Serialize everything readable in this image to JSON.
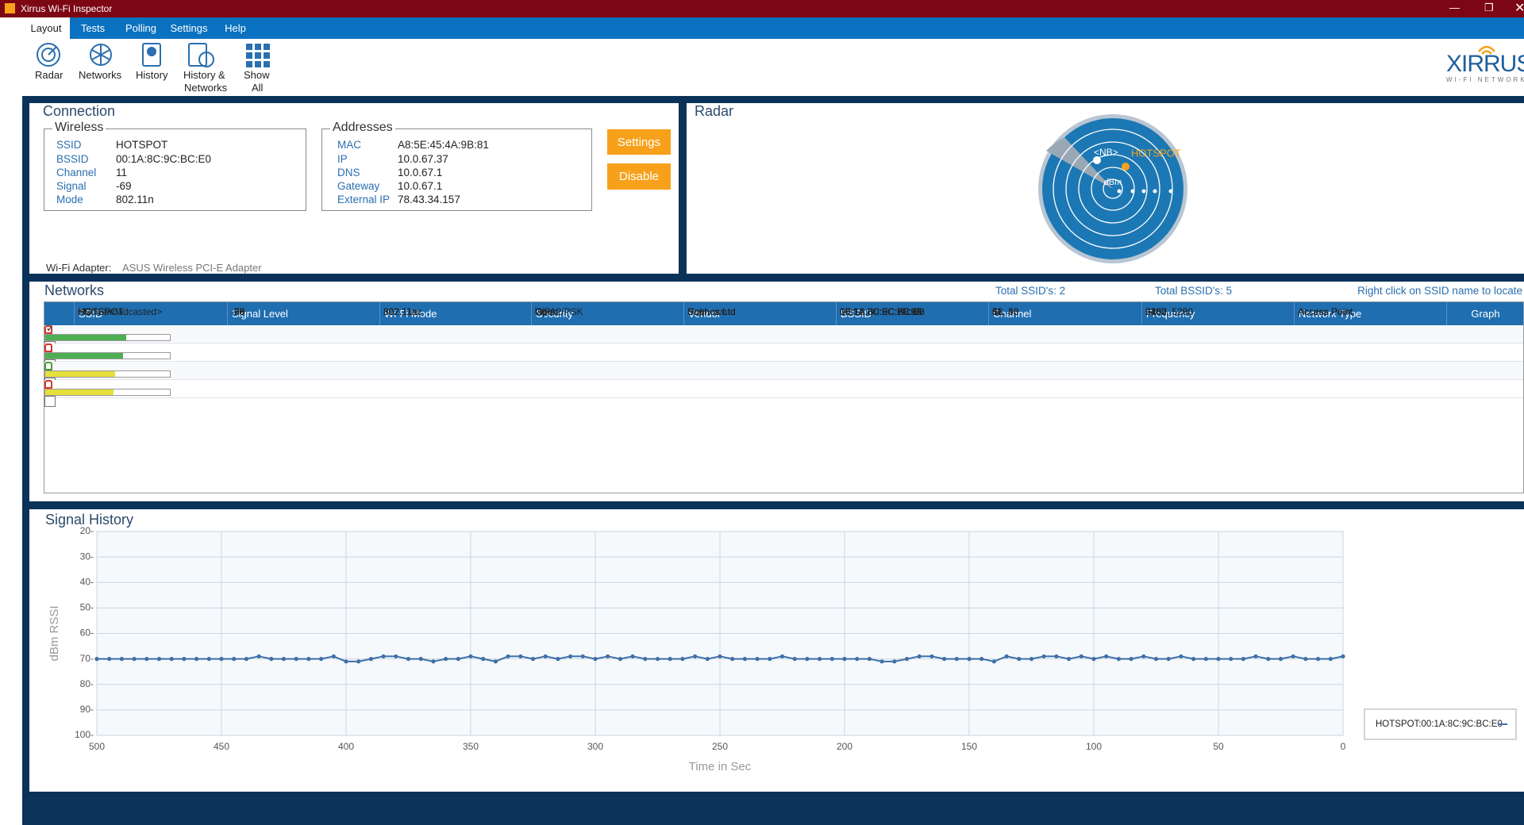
{
  "window_title": "Xirrus Wi-Fi Inspector",
  "menu": [
    "Layout",
    "Tests",
    "Polling",
    "Settings",
    "Help"
  ],
  "toolbar": [
    "Radar",
    "Networks",
    "History",
    "History &",
    "Networks",
    "Show",
    "All"
  ],
  "logo": "XIRRUS",
  "logo_sub": "WI-FI NETWORKS",
  "connection": {
    "title": "Connection",
    "wireless": {
      "title": "Wireless",
      "fields": [
        {
          "label": "SSID",
          "value": "HOTSPOT"
        },
        {
          "label": "BSSID",
          "value": "00:1A:8C:9C:BC:E0"
        },
        {
          "label": "Channel",
          "value": "11"
        },
        {
          "label": "Signal",
          "value": "-69"
        },
        {
          "label": "Mode",
          "value": "802.11n"
        }
      ]
    },
    "addresses": {
      "title": "Addresses",
      "fields": [
        {
          "label": "MAC",
          "value": "A8:5E:45:4A:9B:81"
        },
        {
          "label": "IP",
          "value": "10.0.67.37"
        },
        {
          "label": "DNS",
          "value": "10.0.67.1"
        },
        {
          "label": "Gateway",
          "value": "10.0.67.1"
        },
        {
          "label": "External IP",
          "value": "78.43.34.157"
        }
      ]
    },
    "buttons": [
      "Settings",
      "Disable"
    ],
    "adapter_label": "Wi-Fi Adapter:",
    "adapter": "ASUS Wireless PCI-E Adapter"
  },
  "radar": {
    "title": "Radar",
    "labels": [
      "<NB>",
      "HOTSPOT",
      "dBm"
    ]
  },
  "networks": {
    "title": "Networks",
    "total_ssids": "Total SSID's: 2",
    "total_bssids": "Total BSSID's: 5",
    "hint": "Right click on SSID name to locate",
    "columns": [
      "SSID",
      "Signal Level",
      "Wi-Fi Mode",
      "Security",
      "Vendor",
      "BSSID",
      "Channel",
      "Frequency",
      "Network Type",
      "Graph"
    ],
    "selected_row": 0,
    "rows": [
      {
        "ssid": "HOTSPOT",
        "signal": -69,
        "mode": "802.11n",
        "security": "Open",
        "vendor": "Sophos Ltd",
        "bssid": "00:1A:8C:9C:BC:E0",
        "channel": "11",
        "frequency": "2462",
        "network_type": "Access Point",
        "graph": true
      },
      {
        "ssid": "HOTSPOT",
        "signal": -68,
        "mode": "802.11n",
        "security": "Open",
        "vendor": "Sophos Ltd",
        "bssid": "00:1A:8C:9C:7F:92",
        "channel": "6",
        "frequency": "2437",
        "network_type": "Access Point",
        "graph": false
      },
      {
        "ssid": "HOTSPOT",
        "signal": -70,
        "mode": "802.11ac",
        "security": "Open",
        "vendor": "Sophos Ltd",
        "bssid": "00:1A:8C:9C:7F:9A",
        "channel": "36, 40",
        "frequency": "5180, 5200",
        "network_type": "Access Point",
        "graph": false
      },
      {
        "ssid": "<Non-broadcasted>",
        "signal": -75,
        "mode": "802.11n",
        "security": "WPA2/PSK",
        "vendor": "Unknown",
        "bssid": "1E:12:B0:EC:F9:88",
        "channel": "11",
        "frequency": "2462",
        "network_type": "Access Point",
        "graph": false
      },
      {
        "ssid": "HOTSPOT",
        "signal": -76,
        "mode": "802.11ac",
        "security": "Open",
        "vendor": "Sophos Ltd",
        "bssid": "00:1A:8C:9C:BC:E8",
        "channel": "52, 56",
        "frequency": "5260, 5280",
        "network_type": "Access Point",
        "graph": false
      }
    ]
  },
  "signal_history": {
    "type": "line",
    "title": "Signal History",
    "ylabel": "dBm RSSI",
    "xlabel": "Time in Sec",
    "xlim": [
      500,
      0
    ],
    "ylim": [
      100,
      20
    ],
    "xticks": [
      500,
      450,
      400,
      350,
      300,
      250,
      200,
      150,
      100,
      50,
      0
    ],
    "yticks": [
      {
        "value": 20,
        "label": "20-"
      },
      {
        "value": 30,
        "label": "30-"
      },
      {
        "value": 40,
        "label": "40-"
      },
      {
        "value": 50,
        "label": "50-"
      },
      {
        "value": 60,
        "label": "60-"
      },
      {
        "value": 70,
        "label": "70-"
      },
      {
        "value": 80,
        "label": "80-"
      },
      {
        "value": 90,
        "label": "90-"
      },
      {
        "value": 100,
        "label": "100-"
      }
    ],
    "grid": true,
    "x": [
      500,
      495,
      490,
      485,
      480,
      475,
      470,
      465,
      460,
      455,
      450,
      445,
      440,
      435,
      430,
      425,
      420,
      415,
      410,
      405,
      400,
      395,
      390,
      385,
      380,
      375,
      370,
      365,
      360,
      355,
      350,
      345,
      340,
      335,
      330,
      325,
      320,
      315,
      310,
      305,
      300,
      295,
      290,
      285,
      280,
      275,
      270,
      265,
      260,
      255,
      250,
      245,
      240,
      235,
      230,
      225,
      220,
      215,
      210,
      205,
      200,
      195,
      190,
      185,
      180,
      175,
      170,
      165,
      160,
      155,
      150,
      145,
      140,
      135,
      130,
      125,
      120,
      115,
      110,
      105,
      100,
      95,
      90,
      85,
      80,
      75,
      70,
      65,
      60,
      55,
      50,
      45,
      40,
      35,
      30,
      25,
      20,
      15,
      10,
      5,
      0
    ],
    "series": [
      {
        "name": "HOTSPOT:00:1A:8C:9C:BC:E0",
        "color": "#3f6fa6",
        "values": [
          70,
          70,
          70,
          70,
          70,
          70,
          70,
          70,
          70,
          70,
          70,
          70,
          70,
          69,
          70,
          70,
          70,
          70,
          70,
          69,
          71,
          71,
          70,
          69,
          69,
          70,
          70,
          71,
          70,
          70,
          69,
          70,
          71,
          69,
          69,
          70,
          69,
          70,
          69,
          69,
          70,
          69,
          70,
          69,
          70,
          70,
          70,
          70,
          69,
          70,
          69,
          70,
          70,
          70,
          70,
          69,
          70,
          70,
          70,
          70,
          70,
          70,
          70,
          71,
          71,
          70,
          69,
          69,
          70,
          70,
          70,
          70,
          71,
          69,
          70,
          70,
          69,
          69,
          70,
          69,
          70,
          69,
          70,
          70,
          69,
          70,
          70,
          69,
          70,
          70,
          70,
          70,
          70,
          69,
          70,
          70,
          69,
          70,
          70,
          70,
          69
        ]
      }
    ]
  }
}
